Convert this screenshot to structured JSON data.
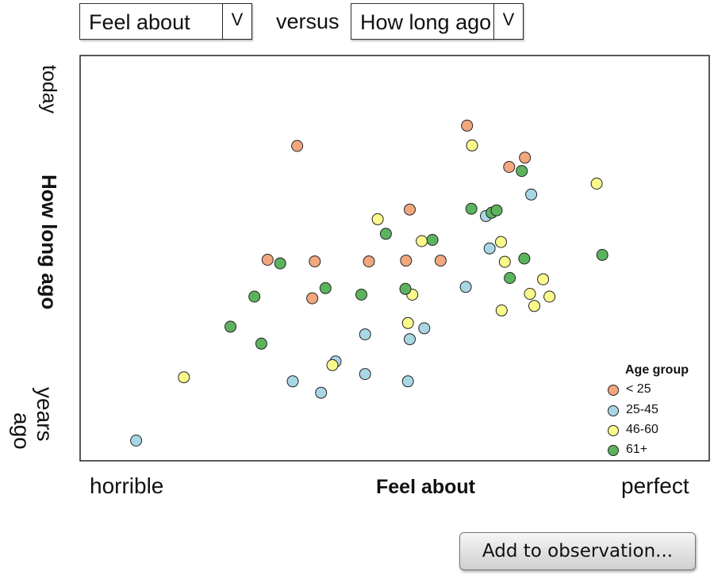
{
  "controls": {
    "x_variable": "Feel about",
    "y_variable": "How long ago",
    "versus_label": "versus",
    "dropdown_glyph": "V",
    "add_button_label": "Add to observation..."
  },
  "chart_data": {
    "type": "scatter",
    "xlabel": "Feel about",
    "ylabel": "How long ago",
    "x_tick_low": "horrible",
    "x_tick_high": "perfect",
    "y_tick_high": "today",
    "y_tick_low_line1": "years",
    "y_tick_low_line2": "ago",
    "xlim": [
      0,
      1
    ],
    "ylim": [
      0,
      1
    ],
    "grid": false,
    "legend_title": "Age group",
    "legend_position": "bottom-right",
    "series": [
      {
        "name": "< 25",
        "color": "#f2a77f",
        "points": [
          [
            0.345,
            0.777
          ],
          [
            0.615,
            0.827
          ],
          [
            0.682,
            0.725
          ],
          [
            0.707,
            0.748
          ],
          [
            0.524,
            0.62
          ],
          [
            0.373,
            0.492
          ],
          [
            0.459,
            0.492
          ],
          [
            0.518,
            0.494
          ],
          [
            0.573,
            0.494
          ],
          [
            0.369,
            0.401
          ],
          [
            0.298,
            0.496
          ]
        ]
      },
      {
        "name": "25-45",
        "color": "#a9d6e5",
        "points": [
          [
            0.089,
            0.05
          ],
          [
            0.717,
            0.657
          ],
          [
            0.645,
            0.604
          ],
          [
            0.651,
            0.524
          ],
          [
            0.613,
            0.429
          ],
          [
            0.547,
            0.327
          ],
          [
            0.524,
            0.3
          ],
          [
            0.453,
            0.312
          ],
          [
            0.406,
            0.245
          ],
          [
            0.453,
            0.214
          ],
          [
            0.338,
            0.196
          ],
          [
            0.383,
            0.168
          ],
          [
            0.521,
            0.196
          ]
        ]
      },
      {
        "name": "46-60",
        "color": "#fafa8c",
        "points": [
          [
            0.623,
            0.778
          ],
          [
            0.821,
            0.684
          ],
          [
            0.473,
            0.596
          ],
          [
            0.543,
            0.542
          ],
          [
            0.669,
            0.54
          ],
          [
            0.675,
            0.491
          ],
          [
            0.736,
            0.448
          ],
          [
            0.715,
            0.412
          ],
          [
            0.746,
            0.405
          ],
          [
            0.722,
            0.382
          ],
          [
            0.67,
            0.371
          ],
          [
            0.528,
            0.41
          ],
          [
            0.521,
            0.34
          ],
          [
            0.401,
            0.236
          ],
          [
            0.165,
            0.206
          ]
        ]
      },
      {
        "name": "61+",
        "color": "#5cb35e",
        "points": [
          [
            0.702,
            0.715
          ],
          [
            0.622,
            0.622
          ],
          [
            0.654,
            0.612
          ],
          [
            0.486,
            0.56
          ],
          [
            0.56,
            0.545
          ],
          [
            0.706,
            0.499
          ],
          [
            0.83,
            0.508
          ],
          [
            0.683,
            0.451
          ],
          [
            0.318,
            0.487
          ],
          [
            0.39,
            0.426
          ],
          [
            0.517,
            0.424
          ],
          [
            0.447,
            0.41
          ],
          [
            0.277,
            0.405
          ],
          [
            0.239,
            0.331
          ],
          [
            0.288,
            0.289
          ],
          [
            0.662,
            0.618
          ]
        ]
      }
    ]
  }
}
